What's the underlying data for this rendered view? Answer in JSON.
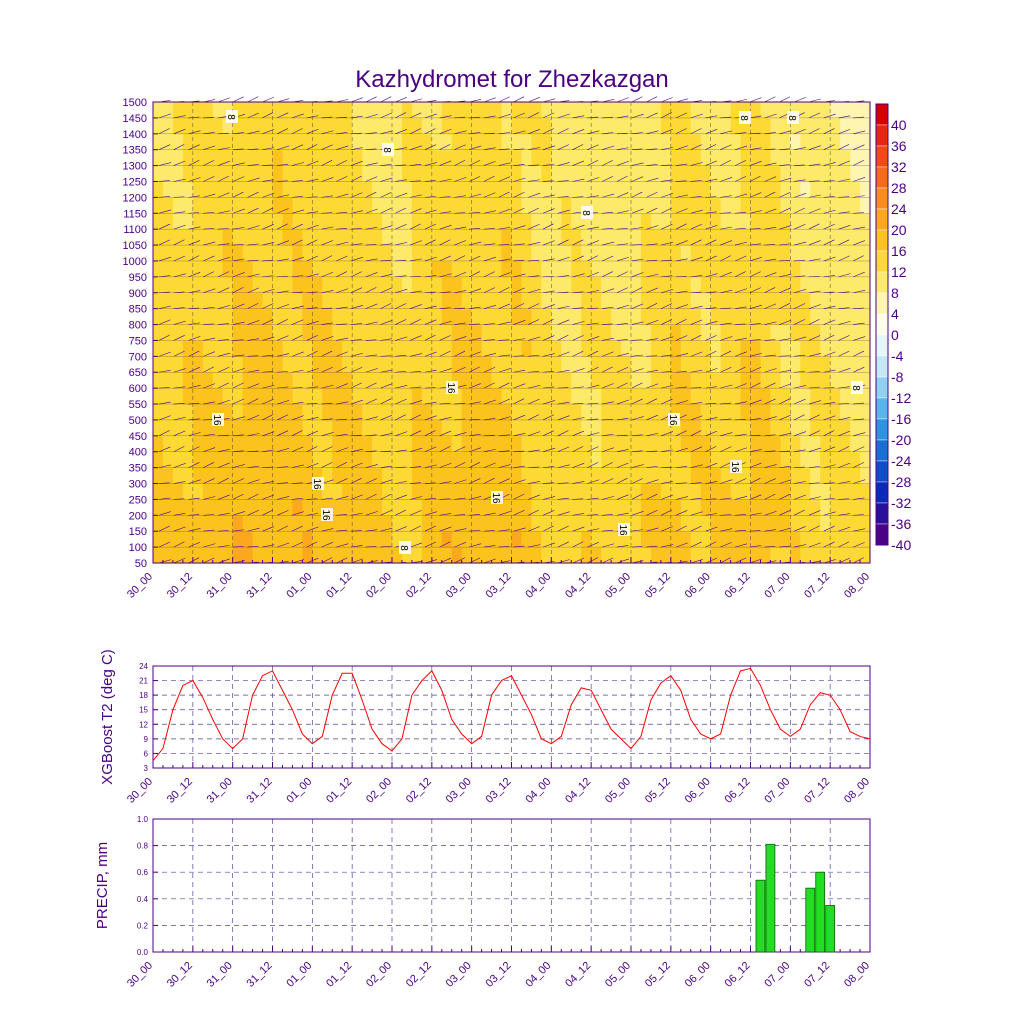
{
  "title": "Kazhydromet for Zhezkazgan",
  "time_labels": [
    "30_00",
    "30_12",
    "31_00",
    "31_12",
    "01_00",
    "01_12",
    "02_00",
    "02_12",
    "03_00",
    "03_12",
    "04_00",
    "04_12",
    "05_00",
    "05_12",
    "06_00",
    "06_12",
    "07_00",
    "07_12",
    "08_00"
  ],
  "colors": {
    "axis": "#4b0082",
    "t2_line": "#ff0000",
    "precip_bar": "#22dd22",
    "grid": "#5a3fa0"
  },
  "chart_data": [
    {
      "type": "heatmap",
      "name": "upper-air cross-section",
      "title": "Kazhydromet for Zhezkazgan",
      "y_ticks": [
        50,
        100,
        150,
        200,
        250,
        300,
        350,
        400,
        450,
        500,
        550,
        600,
        650,
        700,
        750,
        800,
        850,
        900,
        950,
        1000,
        1050,
        1100,
        1150,
        1200,
        1250,
        1300,
        1350,
        1400,
        1450,
        1500
      ],
      "ylim": [
        50,
        1500
      ],
      "colorbar": {
        "labels": [
          40,
          36,
          32,
          28,
          24,
          20,
          16,
          12,
          8,
          4,
          0,
          -4,
          -8,
          -12,
          -16,
          -20,
          -24,
          -28,
          -32,
          -36,
          -40
        ],
        "colors": [
          "#d40000",
          "#e8260e",
          "#f24a12",
          "#f66b14",
          "#f98e18",
          "#fba81c",
          "#fcc21e",
          "#fdd935",
          "#fde96a",
          "#fdf5b0",
          "#fffde8",
          "#e6f5fc",
          "#c4e6f8",
          "#8fd0f3",
          "#5ab5ec",
          "#2f94e0",
          "#1a6fd3",
          "#0f4cc8",
          "#0a2bb8",
          "#2a0f9a",
          "#4b0088"
        ]
      },
      "contour_labels": [
        "8",
        "8",
        "8",
        "8",
        "8",
        "16",
        "16",
        "16",
        "16",
        "16",
        "16",
        "16",
        "16",
        "8",
        "8"
      ],
      "mean_temp_by_time": [
        16,
        18,
        20,
        21,
        19,
        17,
        14,
        19,
        20,
        19,
        13,
        12,
        12,
        18,
        14,
        19,
        12,
        10,
        8
      ],
      "mean_temp_by_level": [
        18,
        18,
        17,
        17,
        16,
        16,
        15,
        15,
        14,
        14,
        13,
        13,
        12,
        12,
        11,
        11,
        10,
        10,
        10,
        9,
        9,
        8,
        8,
        7,
        7,
        7,
        6,
        6,
        6,
        5
      ]
    },
    {
      "type": "line",
      "name": "t2",
      "ylabel": "XGBoost T2 (deg C)",
      "y_ticks": [
        3,
        6,
        9,
        12,
        15,
        18,
        21,
        24
      ],
      "ylim": [
        3,
        24
      ],
      "x_step_hours": 3,
      "values": [
        4.5,
        7,
        15,
        20,
        21,
        17.5,
        13,
        9,
        7,
        9,
        18,
        22,
        23,
        19,
        15,
        10,
        8,
        9.5,
        18,
        22.5,
        22.5,
        17,
        11,
        8,
        6.5,
        9,
        18,
        21,
        23,
        19,
        13,
        10,
        8,
        9.5,
        18,
        21,
        22,
        18,
        14,
        9,
        8,
        9.5,
        16,
        19.5,
        19,
        15,
        11,
        9,
        7,
        9.5,
        17,
        20.5,
        22,
        19,
        13,
        10,
        9,
        10,
        18,
        23,
        23.5,
        20,
        15,
        11,
        9.5,
        11,
        16,
        18.5,
        18,
        15,
        10.5,
        9.5,
        9
      ]
    },
    {
      "type": "bar",
      "name": "precip",
      "ylabel": "PRECIP, mm",
      "y_ticks": [
        "0.0",
        "0.2",
        "0.4",
        "0.6",
        "0.8",
        "1.0"
      ],
      "ylim": [
        0,
        1.0
      ],
      "x_step_hours": 3,
      "values": [
        0,
        0,
        0,
        0,
        0,
        0,
        0,
        0,
        0,
        0,
        0,
        0,
        0,
        0,
        0,
        0,
        0,
        0,
        0,
        0,
        0,
        0,
        0,
        0,
        0,
        0,
        0,
        0,
        0,
        0,
        0,
        0,
        0,
        0,
        0,
        0,
        0,
        0,
        0,
        0,
        0,
        0,
        0,
        0,
        0,
        0,
        0,
        0,
        0,
        0,
        0,
        0,
        0,
        0,
        0,
        0,
        0,
        0,
        0,
        0,
        0,
        0.54,
        0.81,
        0,
        0,
        0,
        0.48,
        0.6,
        0.35,
        0,
        0,
        0,
        0
      ]
    }
  ]
}
